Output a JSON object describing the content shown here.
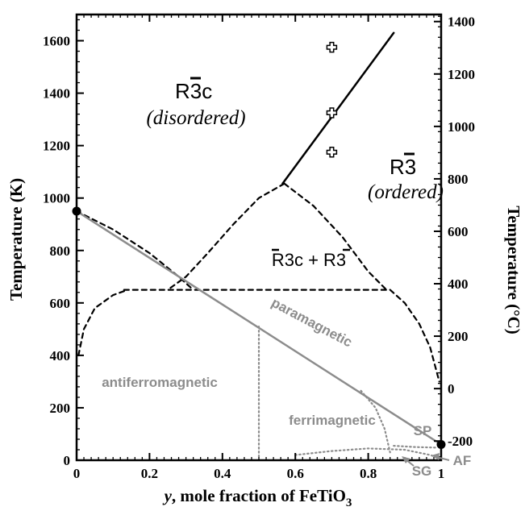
{
  "chart_data": {
    "type": "phase-diagram",
    "x_axis": {
      "label_prefix": "y",
      "label_text": ", mole fraction of FeTiO",
      "label_subscript": "3",
      "range": [
        0,
        1
      ],
      "ticks": [
        0,
        0.2,
        0.4,
        0.6,
        0.8,
        1
      ],
      "tick_labels": [
        "0",
        "0.2",
        "0.4",
        "0.6",
        "0.8",
        "1"
      ]
    },
    "y_axis_left": {
      "label": "Temperature (K)",
      "range": [
        0,
        1700
      ],
      "ticks": [
        0,
        200,
        400,
        600,
        800,
        1000,
        1200,
        1400,
        1600
      ],
      "tick_labels": [
        "0",
        "200",
        "400",
        "600",
        "800",
        "1000",
        "1200",
        "1400",
        "1600"
      ]
    },
    "y_axis_right": {
      "label": "Temperature (°C)",
      "ticks": [
        -200,
        0,
        200,
        400,
        600,
        800,
        1000,
        1200,
        1400
      ],
      "tick_labels": [
        "-200",
        "0",
        "200",
        "400",
        "600",
        "800",
        "1000",
        "1200",
        "1400"
      ]
    },
    "colors": {
      "structural": "#000000",
      "magnetic": "#8c8c8c"
    },
    "curves": [
      {
        "name": "order-disorder transition (solid)",
        "style": "solid",
        "color": "#000000",
        "points": [
          [
            0.565,
            1055
          ],
          [
            0.87,
            1630
          ]
        ]
      },
      {
        "name": "miscibility gap left (dashed)",
        "style": "dashed",
        "color": "#000000",
        "points": [
          [
            0.57,
            1055
          ],
          [
            0.5,
            1000
          ],
          [
            0.43,
            900
          ],
          [
            0.36,
            790
          ],
          [
            0.3,
            700
          ],
          [
            0.25,
            650
          ]
        ]
      },
      {
        "name": "miscibility gap right (dashed)",
        "style": "dashed",
        "color": "#000000",
        "points": [
          [
            0.57,
            1055
          ],
          [
            0.65,
            970
          ],
          [
            0.73,
            850
          ],
          [
            0.8,
            720
          ],
          [
            0.85,
            650
          ]
        ]
      },
      {
        "name": "R-3c boundary from y=0 (dashed)",
        "style": "dashed",
        "color": "#000000",
        "points": [
          [
            0,
            950
          ],
          [
            0.1,
            880
          ],
          [
            0.2,
            790
          ],
          [
            0.28,
            700
          ],
          [
            0.32,
            650
          ]
        ]
      },
      {
        "name": "eutectoid line (dashed)",
        "style": "dashed",
        "color": "#000000",
        "points": [
          [
            0.13,
            650
          ],
          [
            0.85,
            650
          ]
        ]
      },
      {
        "name": "left solvus (dashed)",
        "style": "dashed",
        "color": "#000000",
        "points": [
          [
            0.005,
            400
          ],
          [
            0.02,
            500
          ],
          [
            0.05,
            580
          ],
          [
            0.1,
            630
          ],
          [
            0.14,
            650
          ]
        ]
      },
      {
        "name": "right solvus (dashed)",
        "style": "dashed",
        "color": "#000000",
        "points": [
          [
            0.86,
            650
          ],
          [
            0.9,
            600
          ],
          [
            0.94,
            520
          ],
          [
            0.97,
            430
          ],
          [
            0.995,
            300
          ]
        ]
      },
      {
        "name": "magnetic ordering temperature (solid)",
        "style": "solid",
        "color": "#8c8c8c",
        "points": [
          [
            0,
            950
          ],
          [
            1,
            60
          ]
        ]
      },
      {
        "name": "antiferro/ferrimagnetic boundary (dotted)",
        "style": "dotted",
        "color": "#8c8c8c",
        "points": [
          [
            0.5,
            510
          ],
          [
            0.5,
            0
          ]
        ]
      },
      {
        "name": "ferrimagnetic/superparamagnetic boundary (dotted)",
        "style": "dotted",
        "color": "#8c8c8c",
        "points": [
          [
            0.78,
            265
          ],
          [
            0.82,
            200
          ],
          [
            0.845,
            120
          ],
          [
            0.86,
            30
          ]
        ]
      },
      {
        "name": "spin glass boundary (dotted)",
        "style": "dotted",
        "color": "#8c8c8c",
        "points": [
          [
            0.6,
            20
          ],
          [
            0.7,
            35
          ],
          [
            0.8,
            45
          ],
          [
            0.9,
            40
          ],
          [
            0.97,
            20
          ],
          [
            1,
            5
          ]
        ]
      },
      {
        "name": "SP/AF boundary (dotted)",
        "style": "dotted",
        "color": "#8c8c8c",
        "points": [
          [
            0.87,
            55
          ],
          [
            0.93,
            50
          ],
          [
            0.99,
            48
          ]
        ]
      }
    ],
    "markers": [
      {
        "shape": "filled-circle",
        "x": 0,
        "y": 950
      },
      {
        "shape": "filled-circle",
        "x": 1,
        "y": 60
      },
      {
        "shape": "open-cross",
        "x": 0.7,
        "y": 1575
      },
      {
        "shape": "open-cross",
        "x": 0.7,
        "y": 1325
      },
      {
        "shape": "open-cross",
        "x": 0.7,
        "y": 1175
      }
    ],
    "region_labels": {
      "r3c_symbol": "R3c",
      "r3c_sub": "(disordered)",
      "r3_symbol": "R3",
      "r3_sub": "(ordered)",
      "two_phase": "R3c + R3",
      "paramagnetic": "paramagnetic",
      "antiferromagnetic": "antiferromagnetic",
      "ferrimagnetic": "ferrimagnetic",
      "sp": "SP",
      "sg": "SG",
      "af": "AF"
    }
  }
}
